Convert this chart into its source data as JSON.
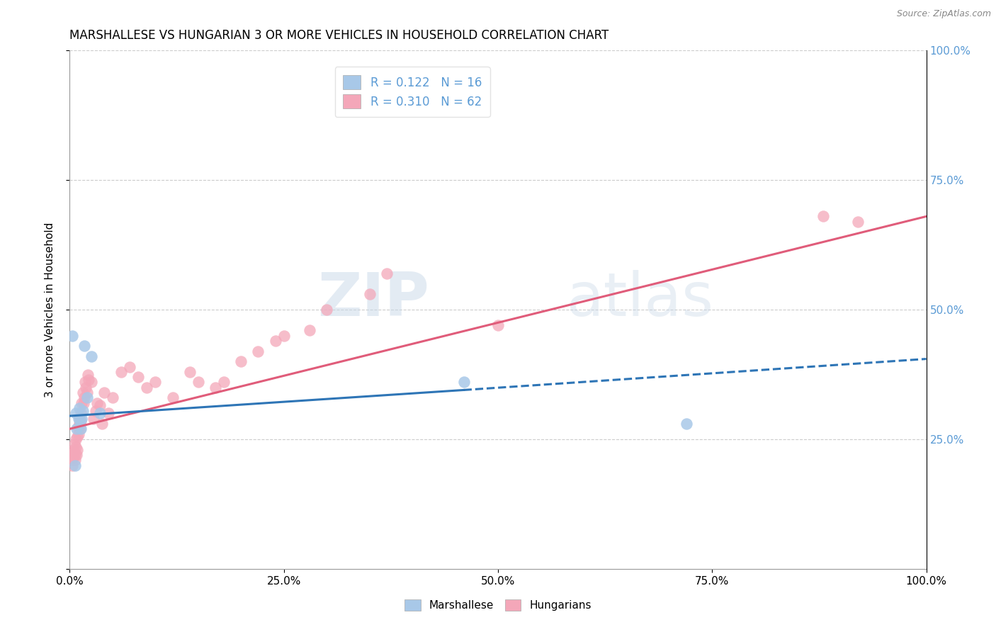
{
  "title": "MARSHALLESE VS HUNGARIAN 3 OR MORE VEHICLES IN HOUSEHOLD CORRELATION CHART",
  "source": "Source: ZipAtlas.com",
  "ylabel": "3 or more Vehicles in Household",
  "xlim": [
    0,
    100
  ],
  "ylim": [
    0,
    100
  ],
  "xtick_labels": [
    "0.0%",
    "25.0%",
    "50.0%",
    "75.0%",
    "100.0%"
  ],
  "xtick_values": [
    0,
    25,
    50,
    75,
    100
  ],
  "right_ytick_labels": [
    "25.0%",
    "50.0%",
    "75.0%",
    "100.0%"
  ],
  "right_ytick_values": [
    25,
    50,
    75,
    100
  ],
  "marshallese_color": "#A8C8E8",
  "hungarian_color": "#F4A7B9",
  "marshallese_line_color": "#2E75B6",
  "hungarian_line_color": "#E05C7A",
  "legend_marshallese_label": "R = 0.122   N = 16",
  "legend_hungarian_label": "R = 0.310   N = 62",
  "watermark_zip": "ZIP",
  "watermark_atlas": "atlas",
  "background_color": "#FFFFFF",
  "grid_color": "#CCCCCC",
  "right_axis_color": "#5B9BD5",
  "marshallese_x": [
    0.3,
    0.6,
    0.7,
    0.8,
    1.0,
    1.1,
    1.2,
    1.3,
    1.4,
    1.5,
    1.7,
    2.0,
    2.5,
    3.5,
    46.0,
    72.0
  ],
  "marshallese_y": [
    45.0,
    20.0,
    30.0,
    27.0,
    29.0,
    31.0,
    28.5,
    27.0,
    29.0,
    30.5,
    43.0,
    33.0,
    41.0,
    30.0,
    36.0,
    28.0
  ],
  "hungarian_x": [
    0.15,
    0.2,
    0.3,
    0.35,
    0.4,
    0.45,
    0.5,
    0.55,
    0.6,
    0.65,
    0.7,
    0.75,
    0.8,
    0.85,
    0.9,
    0.95,
    1.0,
    1.05,
    1.1,
    1.15,
    1.2,
    1.25,
    1.3,
    1.4,
    1.5,
    1.6,
    1.7,
    1.8,
    1.9,
    2.0,
    2.1,
    2.2,
    2.5,
    2.8,
    3.0,
    3.2,
    3.5,
    3.8,
    4.0,
    4.5,
    5.0,
    6.0,
    7.0,
    8.0,
    9.0,
    10.0,
    12.0,
    14.0,
    15.0,
    17.0,
    18.0,
    20.0,
    22.0,
    24.0,
    25.0,
    28.0,
    30.0,
    35.0,
    37.0,
    50.0,
    88.0,
    92.0
  ],
  "hungarian_y": [
    22.0,
    21.0,
    20.0,
    21.5,
    22.0,
    23.0,
    22.5,
    24.0,
    21.0,
    22.0,
    23.5,
    25.0,
    22.0,
    23.0,
    25.5,
    27.0,
    26.0,
    27.5,
    28.0,
    29.0,
    27.0,
    28.5,
    30.0,
    32.0,
    34.0,
    32.0,
    33.0,
    36.0,
    35.0,
    34.0,
    37.5,
    36.5,
    36.0,
    29.0,
    30.5,
    32.0,
    31.5,
    28.0,
    34.0,
    30.0,
    33.0,
    38.0,
    39.0,
    37.0,
    35.0,
    36.0,
    33.0,
    38.0,
    36.0,
    35.0,
    36.0,
    40.0,
    42.0,
    44.0,
    45.0,
    46.0,
    50.0,
    53.0,
    57.0,
    47.0,
    68.0,
    67.0
  ],
  "marsh_R": 0.122,
  "marsh_N": 16,
  "hung_R": 0.31,
  "hung_N": 62,
  "hung_line_x0": 0.0,
  "hung_line_y0": 27.0,
  "hung_line_x1": 100.0,
  "hung_line_y1": 68.0,
  "marsh_line_x0": 0.0,
  "marsh_line_y0": 29.5,
  "marsh_line_x1": 46.0,
  "marsh_line_y1": 34.5,
  "marsh_dash_x0": 46.0,
  "marsh_dash_y0": 34.5,
  "marsh_dash_x1": 100.0,
  "marsh_dash_y1": 40.5
}
